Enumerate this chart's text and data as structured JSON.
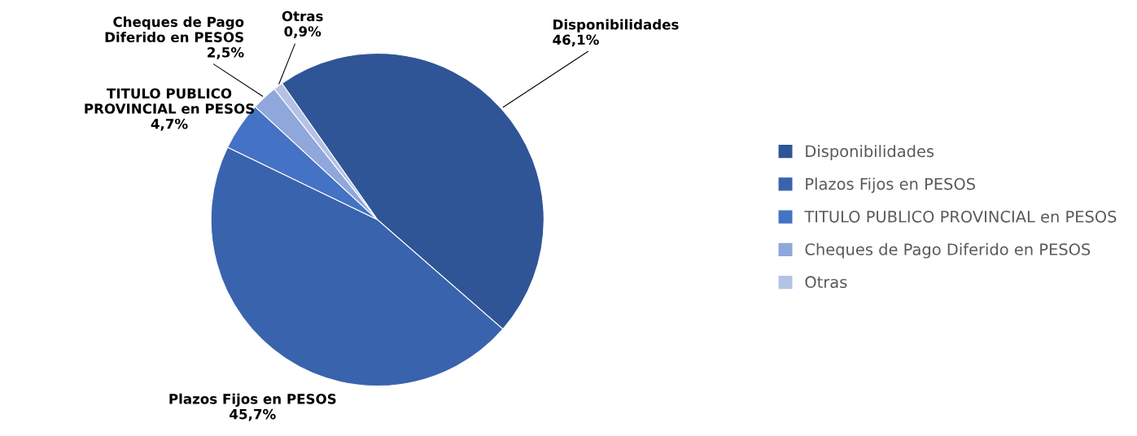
{
  "chart_data": {
    "type": "pie",
    "categories": [
      "Disponibilidades",
      "Plazos Fijos en PESOS",
      "TITULO PUBLICO PROVINCIAL en PESOS",
      "Cheques de Pago Diferido en PESOS",
      "Otras"
    ],
    "values": [
      46.1,
      45.7,
      4.7,
      2.5,
      0.9
    ],
    "value_labels": [
      "46,1%",
      "45,7%",
      "4,7%",
      "2,5%",
      "0,9%"
    ],
    "colors": [
      "#2f5597",
      "#3a63ad",
      "#4472c4",
      "#8fa7da",
      "#b4c2e6"
    ],
    "legend": "right"
  }
}
